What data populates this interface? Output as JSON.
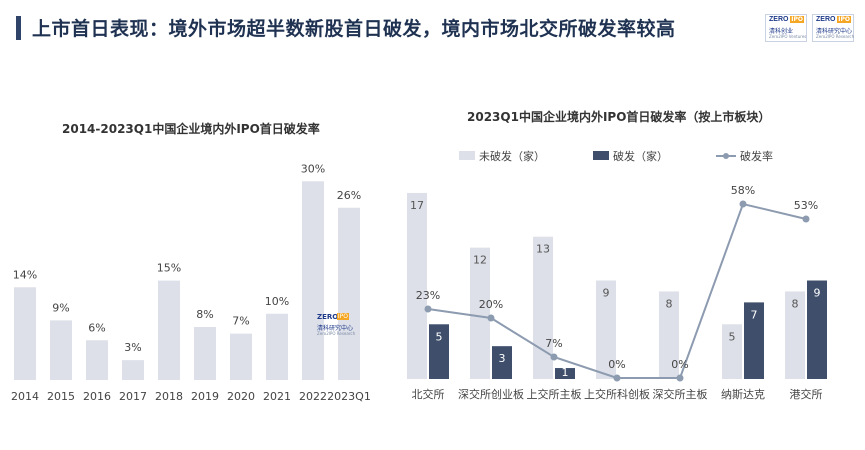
{
  "page": {
    "title": "上市首日表现：境外市场超半数新股首日破发，境内市场北交所破发率较高"
  },
  "logos": [
    {
      "brand": "ZERO",
      "tag": "IPO",
      "name_cn": "清科创业",
      "name_en": "Zero2IPO Ventures"
    },
    {
      "brand": "ZERO",
      "tag": "IPO",
      "name_cn": "清科研究中心",
      "name_en": "Zero2IPO Research"
    }
  ],
  "watermark": {
    "brand": "ZERO",
    "tag": "IPO",
    "name_cn": "清科研究中心",
    "name_en": "Zero2IPO Research"
  },
  "colors": {
    "bar_light": "#dde0e8",
    "bar_dark": "#3f4f6b",
    "line": "#8d9bb0",
    "title": "#1f3252"
  },
  "chart_data": [
    {
      "type": "bar",
      "title": "2014-2023Q1中国企业境内外IPO首日破发率",
      "categories": [
        "2014",
        "2015",
        "2016",
        "2017",
        "2018",
        "2019",
        "2020",
        "2021",
        "2022",
        "2023Q1"
      ],
      "values": [
        14,
        9,
        6,
        3,
        15,
        8,
        7,
        10,
        30,
        26
      ],
      "labels": [
        "14%",
        "9%",
        "6%",
        "3%",
        "15%",
        "8%",
        "7%",
        "10%",
        "30%",
        "26%"
      ],
      "unit": "%",
      "ylim": [
        0,
        32
      ],
      "xlabel": "",
      "ylabel": "",
      "grid": false
    },
    {
      "type": "bar",
      "title": "2023Q1中国企业境内外IPO首日破发率（按上市板块）",
      "categories": [
        "北交所",
        "深交所创业板",
        "上交所主板",
        "上交所科创板",
        "深交所主板",
        "纳斯达克",
        "港交所"
      ],
      "series": [
        {
          "name": "未破发（家）",
          "kind": "bar",
          "values": [
            17,
            12,
            13,
            9,
            8,
            5,
            8
          ]
        },
        {
          "name": "破发（家）",
          "kind": "bar",
          "values": [
            5,
            3,
            1,
            0,
            0,
            7,
            9
          ]
        },
        {
          "name": "破发率",
          "kind": "line",
          "values": [
            23,
            20,
            7,
            0,
            0,
            58,
            53
          ],
          "labels": [
            "23%",
            "20%",
            "7%",
            "0%",
            "0%",
            "58%",
            "53%"
          ]
        }
      ],
      "ylim_bars": [
        0,
        18
      ],
      "ylim_rate": [
        0,
        60
      ],
      "legend_position": "top",
      "xlabel": "",
      "ylabel": "",
      "grid": false
    }
  ]
}
